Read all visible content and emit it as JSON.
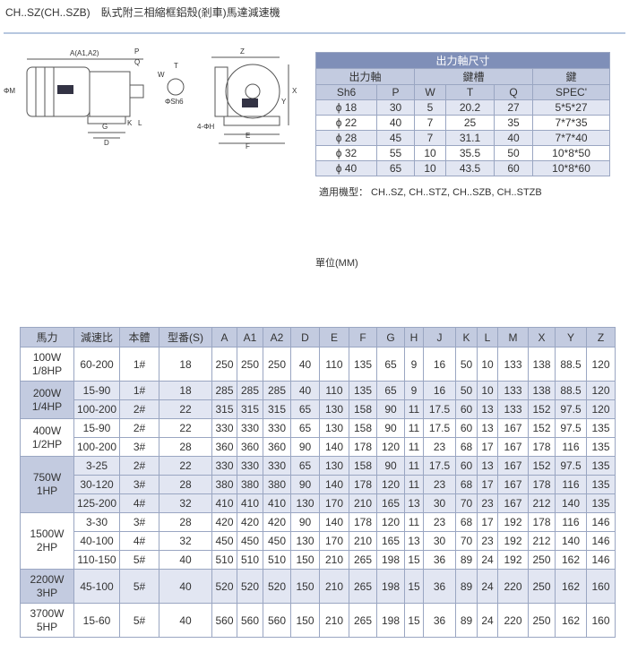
{
  "header": {
    "title": "CH..SZ(CH..SZB)　臥式附三相縮框鋁殼(剎車)馬達減速機"
  },
  "diagram": {
    "labels": [
      "A(A1,A2)",
      "ΦM",
      "P",
      "Q",
      "W",
      "T",
      "ΦSh6",
      "G",
      "D",
      "K",
      "L",
      "Z",
      "X",
      "Y",
      "4-ΦH",
      "E",
      "F"
    ]
  },
  "shaft_table": {
    "title": "出力軸尺寸",
    "groups": [
      "出力軸",
      "鍵槽",
      "鍵"
    ],
    "columns": [
      "Sh6",
      "P",
      "W",
      "T",
      "Q",
      "SPEC'"
    ],
    "rows": [
      [
        "ϕ 18",
        30,
        5,
        20.2,
        27,
        "5*5*27"
      ],
      [
        "ϕ 22",
        40,
        7,
        25,
        35,
        "7*7*35"
      ],
      [
        "ϕ 28",
        45,
        7,
        31.1,
        40,
        "7*7*40"
      ],
      [
        "ϕ 32",
        55,
        10,
        35.5,
        50,
        "10*8*50"
      ],
      [
        "ϕ 40",
        65,
        10,
        43.5,
        60,
        "10*8*60"
      ]
    ]
  },
  "models_note": "適用機型： CH..SZ, CH..STZ, CH..SZB, CH..STZB",
  "unit_note": "單位(MM)",
  "table": {
    "columns": [
      "馬力",
      "減速比",
      "本體",
      "型番(S)",
      "A",
      "A1",
      "A2",
      "D",
      "E",
      "F",
      "G",
      "H",
      "J",
      "K",
      "L",
      "M",
      "X",
      "Y",
      "Z"
    ],
    "groups": [
      {
        "power": [
          "100W",
          "1/8HP"
        ],
        "rows": [
          [
            "60-200",
            "1#",
            18,
            250,
            250,
            250,
            40,
            110,
            135,
            65,
            9,
            16,
            50,
            10,
            133,
            138,
            88.5,
            120
          ]
        ]
      },
      {
        "power": [
          "200W",
          "1/4HP"
        ],
        "rows": [
          [
            "15-90",
            "1#",
            18,
            285,
            285,
            285,
            40,
            110,
            135,
            65,
            9,
            16,
            50,
            10,
            133,
            138,
            88.5,
            120
          ],
          [
            "100-200",
            "2#",
            22,
            315,
            315,
            315,
            65,
            130,
            158,
            90,
            11,
            17.5,
            60,
            13,
            133,
            152,
            97.5,
            120
          ]
        ]
      },
      {
        "power": [
          "400W",
          "1/2HP"
        ],
        "rows": [
          [
            "15-90",
            "2#",
            22,
            330,
            330,
            330,
            65,
            130,
            158,
            90,
            11,
            17.5,
            60,
            13,
            167,
            152,
            97.5,
            135
          ],
          [
            "100-200",
            "3#",
            28,
            360,
            360,
            360,
            90,
            140,
            178,
            120,
            11,
            23,
            68,
            17,
            167,
            178,
            116,
            135
          ]
        ]
      },
      {
        "power": [
          "750W",
          "1HP"
        ],
        "rows": [
          [
            "3-25",
            "2#",
            22,
            330,
            330,
            330,
            65,
            130,
            158,
            90,
            11,
            17.5,
            60,
            13,
            167,
            152,
            97.5,
            135
          ],
          [
            "30-120",
            "3#",
            28,
            380,
            380,
            380,
            90,
            140,
            178,
            120,
            11,
            23,
            68,
            17,
            167,
            178,
            116,
            135
          ],
          [
            "125-200",
            "4#",
            32,
            410,
            410,
            410,
            130,
            170,
            210,
            165,
            13,
            30,
            70,
            23,
            167,
            212,
            140,
            135
          ]
        ]
      },
      {
        "power": [
          "1500W",
          "2HP"
        ],
        "rows": [
          [
            "3-30",
            "3#",
            28,
            420,
            420,
            420,
            90,
            140,
            178,
            120,
            11,
            23,
            68,
            17,
            192,
            178,
            116,
            146
          ],
          [
            "40-100",
            "4#",
            32,
            450,
            450,
            450,
            130,
            170,
            210,
            165,
            13,
            30,
            70,
            23,
            192,
            212,
            140,
            146
          ],
          [
            "110-150",
            "5#",
            40,
            510,
            510,
            510,
            150,
            210,
            265,
            198,
            15,
            36,
            89,
            24,
            192,
            250,
            162,
            146
          ]
        ]
      },
      {
        "power": [
          "2200W",
          "3HP"
        ],
        "rows": [
          [
            "45-100",
            "5#",
            40,
            520,
            520,
            520,
            150,
            210,
            265,
            198,
            15,
            36,
            89,
            24,
            220,
            250,
            162,
            160
          ]
        ]
      },
      {
        "power": [
          "3700W",
          "5HP"
        ],
        "rows": [
          [
            "15-60",
            "5#",
            40,
            560,
            560,
            560,
            150,
            210,
            265,
            198,
            15,
            36,
            89,
            24,
            220,
            250,
            162,
            160
          ]
        ]
      }
    ]
  }
}
